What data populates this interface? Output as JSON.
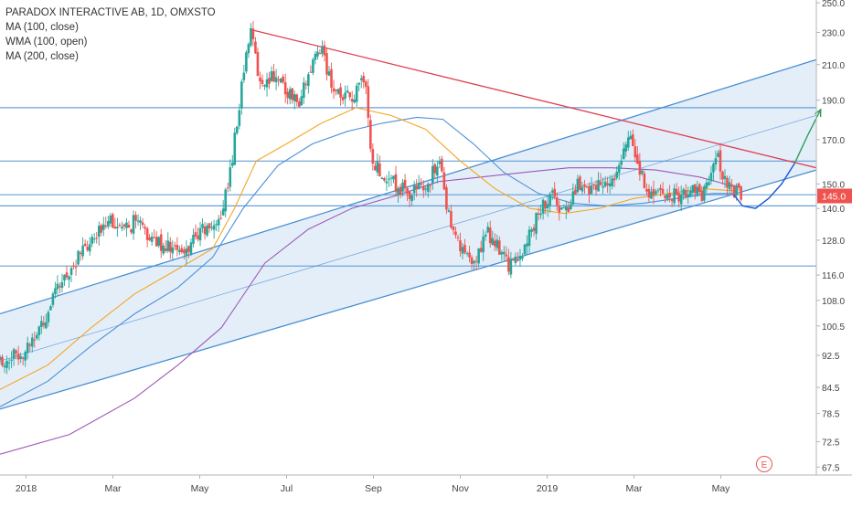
{
  "header": {
    "symbol_line": "PARADOX INTERACTIVE AB, 1D, OMXSTO",
    "indicators": [
      "MA (100, close)",
      "WMA (100, open)",
      "MA (200, close)"
    ]
  },
  "colors": {
    "up": "#26a69a",
    "down": "#ef5350",
    "ma100": "#f5a623",
    "wma100": "#4a90d9",
    "ma200": "#9b59b6",
    "channel_line": "#4a8fd4",
    "channel_fill": "#dbe8f7",
    "resistance": "#e04050",
    "horizontal": "#4a8fd4",
    "projection_blue": "#1a56d6",
    "projection_green": "#2e9e5b",
    "price_badge": "#ef5350"
  },
  "chart_data": {
    "type": "candlestick",
    "title": "PARADOX INTERACTIVE AB, 1D, OMXSTO",
    "x_ticks": [
      "2018",
      "Mar",
      "May",
      "Jul",
      "Sep",
      "Nov",
      "2019",
      "Mar",
      "May"
    ],
    "x_tick_months": [
      0,
      2,
      4,
      6,
      8,
      10,
      12,
      14,
      16
    ],
    "x_range_months": [
      -0.6,
      18.2
    ],
    "y_ticks": [
      67.5,
      72.5,
      78.5,
      84.5,
      92.5,
      100.5,
      108.0,
      116.0,
      128.0,
      140.0,
      150.0,
      170.0,
      190.0,
      210.0,
      230.0,
      250.0
    ],
    "y_tick_labels": [
      "67.5",
      "72.5",
      "78.5",
      "84.5",
      "92.5",
      "100.5",
      "108.0",
      "116.0",
      "128.0",
      "140.0",
      "150.0",
      "170.0",
      "190.0",
      "210.0",
      "230.0",
      "250.0"
    ],
    "y_range": [
      66,
      252
    ],
    "y_scale": "log",
    "last_price": 145.0,
    "last_price_label": "145.0",
    "event_marker": "E",
    "event_month": 17.0,
    "price_path": [
      [
        -0.6,
        91
      ],
      [
        0.0,
        94
      ],
      [
        0.4,
        102
      ],
      [
        0.8,
        113
      ],
      [
        1.2,
        122
      ],
      [
        1.6,
        128
      ],
      [
        1.9,
        138
      ],
      [
        2.2,
        130
      ],
      [
        2.5,
        135
      ],
      [
        2.9,
        128
      ],
      [
        3.3,
        126
      ],
      [
        3.6,
        122
      ],
      [
        3.9,
        130
      ],
      [
        4.2,
        132
      ],
      [
        4.5,
        137
      ],
      [
        4.75,
        160
      ],
      [
        4.95,
        195
      ],
      [
        5.15,
        232
      ],
      [
        5.4,
        198
      ],
      [
        5.7,
        205
      ],
      [
        6.0,
        195
      ],
      [
        6.3,
        190
      ],
      [
        6.6,
        210
      ],
      [
        6.8,
        222
      ],
      [
        7.0,
        200
      ],
      [
        7.3,
        190
      ],
      [
        7.6,
        193
      ],
      [
        7.8,
        205
      ],
      [
        7.95,
        160
      ],
      [
        8.2,
        155
      ],
      [
        8.5,
        150
      ],
      [
        8.8,
        146
      ],
      [
        9.2,
        148
      ],
      [
        9.5,
        160
      ],
      [
        9.7,
        140
      ],
      [
        10.0,
        125
      ],
      [
        10.3,
        118
      ],
      [
        10.6,
        132
      ],
      [
        10.9,
        124
      ],
      [
        11.2,
        118
      ],
      [
        11.5,
        126
      ],
      [
        11.8,
        138
      ],
      [
        12.1,
        145
      ],
      [
        12.4,
        138
      ],
      [
        12.7,
        150
      ],
      [
        13.0,
        148
      ],
      [
        13.4,
        152
      ],
      [
        13.7,
        158
      ],
      [
        13.9,
        176
      ],
      [
        14.1,
        155
      ],
      [
        14.4,
        146
      ],
      [
        14.8,
        144
      ],
      [
        15.2,
        147
      ],
      [
        15.6,
        145
      ],
      [
        15.9,
        162
      ],
      [
        16.1,
        152
      ],
      [
        16.3,
        147
      ],
      [
        16.5,
        145
      ]
    ],
    "ma100": [
      [
        -0.6,
        84
      ],
      [
        0.5,
        90
      ],
      [
        1.5,
        100
      ],
      [
        2.5,
        110
      ],
      [
        3.5,
        118
      ],
      [
        4.3,
        125
      ],
      [
        4.8,
        140
      ],
      [
        5.3,
        160
      ],
      [
        6.0,
        168
      ],
      [
        6.8,
        178
      ],
      [
        7.6,
        186
      ],
      [
        8.4,
        182
      ],
      [
        9.2,
        175
      ],
      [
        10.0,
        160
      ],
      [
        10.8,
        148
      ],
      [
        11.6,
        140
      ],
      [
        12.4,
        138
      ],
      [
        13.2,
        140
      ],
      [
        14.0,
        144
      ],
      [
        14.8,
        146
      ],
      [
        15.6,
        148
      ],
      [
        16.4,
        147
      ]
    ],
    "wma100": [
      [
        -0.6,
        80
      ],
      [
        0.5,
        86
      ],
      [
        1.5,
        95
      ],
      [
        2.5,
        104
      ],
      [
        3.5,
        112
      ],
      [
        4.3,
        122
      ],
      [
        5.0,
        140
      ],
      [
        5.8,
        158
      ],
      [
        6.6,
        168
      ],
      [
        7.4,
        174
      ],
      [
        8.2,
        178
      ],
      [
        9.0,
        181
      ],
      [
        9.6,
        180
      ],
      [
        10.3,
        168
      ],
      [
        11.0,
        155
      ],
      [
        11.8,
        146
      ],
      [
        12.6,
        142
      ],
      [
        13.4,
        141
      ],
      [
        14.2,
        142
      ],
      [
        15.0,
        144
      ],
      [
        15.8,
        146
      ],
      [
        16.4,
        146
      ]
    ],
    "ma200": [
      [
        -0.6,
        70
      ],
      [
        1.0,
        74
      ],
      [
        2.5,
        82
      ],
      [
        3.5,
        90
      ],
      [
        4.5,
        100
      ],
      [
        5.5,
        120
      ],
      [
        6.5,
        132
      ],
      [
        7.5,
        140
      ],
      [
        8.5,
        145
      ],
      [
        9.5,
        151
      ],
      [
        10.5,
        153
      ],
      [
        11.5,
        155
      ],
      [
        12.5,
        157
      ],
      [
        13.5,
        157
      ],
      [
        14.5,
        156
      ],
      [
        15.5,
        153
      ],
      [
        16.3,
        149
      ]
    ],
    "channel": {
      "lower": [
        [
          -0.6,
          79.5
        ],
        [
          18.2,
          156
        ]
      ],
      "upper": [
        [
          -0.6,
          104
        ],
        [
          18.2,
          213
        ]
      ],
      "mid": [
        [
          -0.6,
          91
        ],
        [
          18.2,
          182
        ]
      ]
    },
    "resistance_line": [
      [
        5.15,
        232
      ],
      [
        18.2,
        157
      ]
    ],
    "horizontal_levels": [
      186,
      160,
      145.5,
      141,
      119
    ],
    "projection_blue": [
      [
        16.3,
        145.5
      ],
      [
        16.5,
        141
      ],
      [
        16.8,
        140
      ],
      [
        17.1,
        144
      ],
      [
        17.4,
        150
      ],
      [
        17.7,
        159
      ]
    ],
    "projection_green": [
      [
        17.7,
        159
      ],
      [
        18.0,
        172
      ],
      [
        18.3,
        185
      ]
    ]
  }
}
